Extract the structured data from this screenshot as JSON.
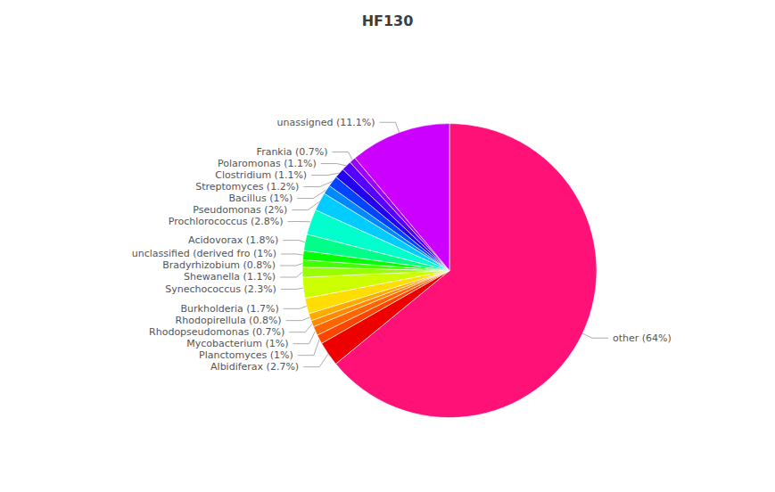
{
  "chart_data": {
    "type": "pie",
    "title": "HF130",
    "categories": [
      "other (64%)",
      "Albidiferax (2.7%)",
      "Planctomyces (1%)",
      "Mycobacterium (1%)",
      "Rhodopseudomonas (0.7%)",
      "Rhodopirellula (0.8%)",
      "Burkholderia (1.7%)",
      "Synechococcus (2.3%)",
      "Shewanella (1.1%)",
      "Bradyrhizobium (0.8%)",
      "unclassified (derived fro (1%)",
      "Acidovorax (1.8%)",
      "Prochlorococcus (2.8%)",
      "Pseudomonas (2%)",
      "Bacillus (1%)",
      "Streptomyces (1.2%)",
      "Clostridium (1.1%)",
      "Polaromonas (1.1%)",
      "Frankia (0.7%)",
      "unassigned (11.1%)"
    ],
    "values": [
      64.0,
      2.7,
      1.0,
      1.0,
      0.7,
      0.8,
      1.7,
      2.3,
      1.1,
      0.8,
      1.0,
      1.8,
      2.8,
      2.0,
      1.0,
      1.2,
      1.1,
      1.1,
      0.7,
      11.1
    ],
    "colors": [
      "#FF1177",
      "#EE0000",
      "#FF4400",
      "#FF6600",
      "#FF8800",
      "#FFAA00",
      "#FFDD00",
      "#CCFF00",
      "#99FF00",
      "#44FF00",
      "#00FF00",
      "#00FF88",
      "#00FFCC",
      "#00CCFF",
      "#0088FF",
      "#0044FF",
      "#2200EE",
      "#5500FF",
      "#9900FF",
      "#CC00FF"
    ]
  }
}
